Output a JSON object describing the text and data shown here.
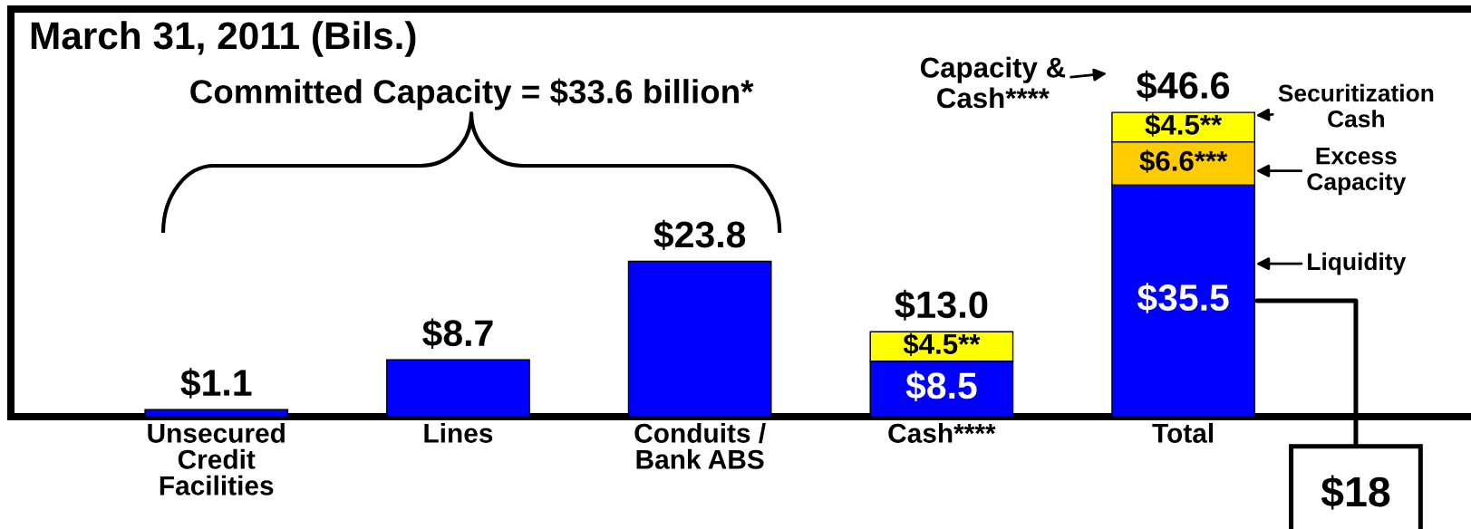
{
  "chart_data": {
    "type": "bar",
    "title": "March 31, 2011 (Bils.)",
    "categories": [
      "Unsecured Credit Facilities",
      "Lines",
      "Conduits / Bank ABS",
      "Cash****",
      "Total"
    ],
    "stacked": true,
    "series": [
      {
        "name": "Liquidity",
        "color": "#0000ff",
        "values": [
          1.1,
          8.7,
          23.8,
          8.5,
          35.5
        ],
        "value_labels": [
          "$1.1",
          "$8.7",
          "$23.8",
          "$8.5",
          "$35.5"
        ]
      },
      {
        "name": "Excess Capacity",
        "color": "#ffcc00",
        "values": [
          null,
          null,
          null,
          null,
          6.6
        ],
        "value_labels": [
          null,
          null,
          null,
          null,
          "$6.6***"
        ]
      },
      {
        "name": "Securitization Cash",
        "color": "#ffff00",
        "values": [
          null,
          null,
          null,
          4.5,
          4.5
        ],
        "value_labels": [
          null,
          null,
          null,
          "$4.5**",
          "$4.5**"
        ]
      }
    ],
    "totals": [
      null,
      null,
      null,
      "$13.0",
      "$46.6"
    ],
    "annotations": [
      "Committed Capacity = $33.6 billion*",
      "Capacity & Cash****",
      "$18"
    ],
    "legend": "right",
    "tick_labels": "x"
  }
}
